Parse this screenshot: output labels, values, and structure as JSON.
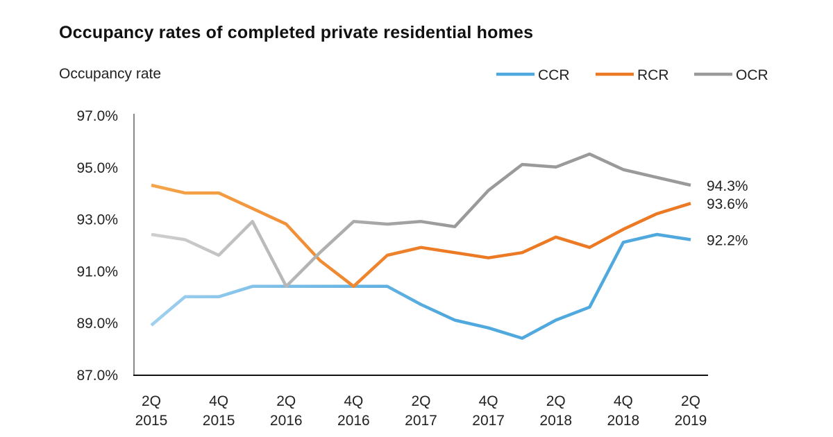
{
  "chart_data": {
    "type": "line",
    "title": "Occupancy rates of completed private residential homes",
    "ylabel": "Occupancy rate",
    "xlabel": "",
    "ylim": [
      87.0,
      97.0
    ],
    "yticks": [
      "97.0%",
      "95.0%",
      "93.0%",
      "91.0%",
      "89.0%",
      "87.0%"
    ],
    "ytick_values": [
      97,
      95,
      93,
      91,
      89,
      87
    ],
    "x": [
      "2Q 2015",
      "3Q 2015",
      "4Q 2015",
      "1Q 2016",
      "2Q 2016",
      "3Q 2016",
      "4Q 2016",
      "1Q 2017",
      "2Q 2017",
      "3Q 2017",
      "4Q 2017",
      "1Q 2018",
      "2Q 2018",
      "3Q 2018",
      "4Q 2018",
      "1Q 2019",
      "2Q 2019"
    ],
    "xtick_labels": [
      [
        "2Q",
        "2015"
      ],
      [
        "4Q",
        "2015"
      ],
      [
        "2Q",
        "2016"
      ],
      [
        "4Q",
        "2016"
      ],
      [
        "2Q",
        "2017"
      ],
      [
        "4Q",
        "2017"
      ],
      [
        "2Q",
        "2018"
      ],
      [
        "4Q",
        "2018"
      ],
      [
        "2Q",
        "2019"
      ]
    ],
    "grid": false,
    "legend": "top-right",
    "series": [
      {
        "name": "CCR",
        "color": "#4fa8de",
        "color_light": "#9fd0ef",
        "values": [
          88.9,
          90.0,
          90.0,
          90.4,
          90.4,
          90.4,
          90.4,
          90.4,
          89.7,
          89.1,
          88.8,
          88.4,
          89.1,
          89.6,
          92.1,
          92.4,
          92.2
        ],
        "end_label": "92.2%"
      },
      {
        "name": "RCR",
        "color": "#ec7a24",
        "color_light": "#f5a54a",
        "values": [
          94.3,
          94.0,
          94.0,
          93.4,
          92.8,
          91.4,
          90.4,
          91.6,
          91.9,
          91.7,
          91.5,
          91.7,
          92.3,
          91.9,
          92.6,
          93.2,
          93.6
        ],
        "end_label": "93.6%"
      },
      {
        "name": "OCR",
        "color": "#9a9a9a",
        "color_light": "#cfcfcf",
        "values": [
          92.4,
          92.2,
          91.6,
          92.9,
          90.4,
          91.7,
          92.9,
          92.8,
          92.9,
          92.7,
          94.1,
          95.1,
          95.0,
          95.5,
          94.9,
          94.6,
          94.3
        ],
        "end_label": "94.3%"
      }
    ]
  }
}
